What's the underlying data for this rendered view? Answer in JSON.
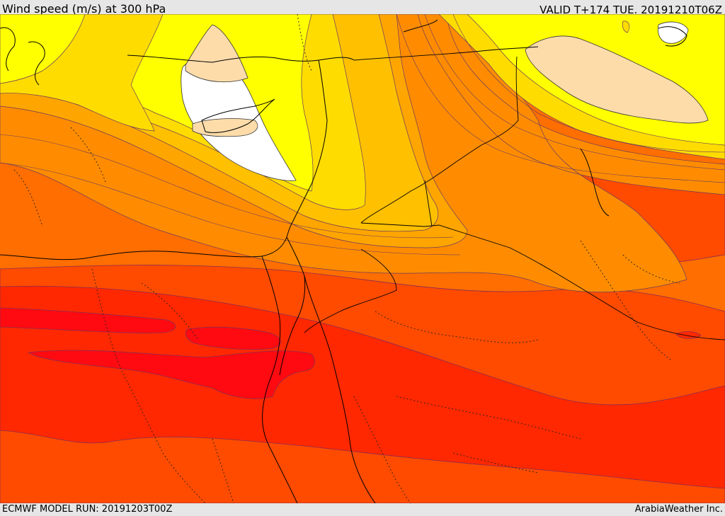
{
  "header": {
    "title": "Wind speed (m/s) at 300 hPa",
    "valid": "VALID T+174 TUE. 20191210T06Z"
  },
  "footer": {
    "model_run": "ECMWF MODEL RUN: 20191203T00Z",
    "credit": "ArabiaWeather Inc."
  },
  "map": {
    "field": "wind speed at 300 hPa",
    "unit": "m/s",
    "colors": {
      "white": "#ffffff",
      "peach": "#fddcaa",
      "yellow": "#ffff00",
      "gold": "#ffdc00",
      "amber": "#ffc000",
      "orange_light": "#ffa500",
      "orange": "#ff8c00",
      "orange_dark": "#ff6e00",
      "red_orange": "#ff4b00",
      "red": "#ff2800",
      "deep_red": "#ff0a10"
    }
  }
}
